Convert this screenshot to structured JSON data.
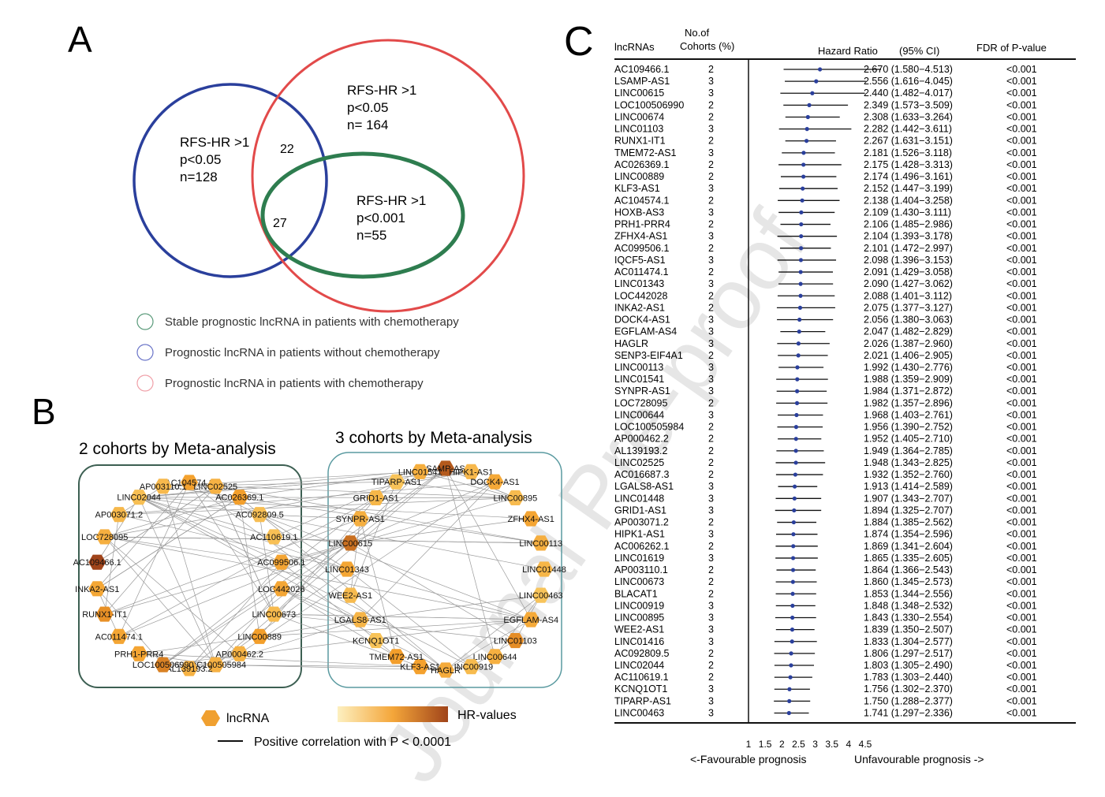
{
  "watermark": "Journal Pre-proof",
  "panel_a": {
    "letter": "A",
    "venn": [
      {
        "name": "blue",
        "color": "#2a3f9c",
        "lines": [
          "RFS-HR >1",
          "p<0.05",
          "n=128"
        ]
      },
      {
        "name": "red",
        "color": "#e24a4a",
        "lines": [
          "RFS-HR >1",
          "p<0.05",
          "n= 164"
        ]
      },
      {
        "name": "green",
        "color": "#2e7d4f",
        "lines": [
          "RFS-HR >1",
          "p<0.001",
          "n=55"
        ]
      }
    ],
    "overlap_blue_red": "22",
    "overlap_all": "27",
    "legend": [
      {
        "label": "Stable prognostic lncRNA in patients with chemotherapy",
        "color": "#5a9a7a"
      },
      {
        "label": "Prognostic lncRNA in patients without chemotherapy",
        "color": "#6a74c8"
      },
      {
        "label": "Prognostic lncRNA in patients with chemotherapy",
        "color": "#f0a0a8"
      }
    ]
  },
  "panel_b": {
    "letter": "B",
    "group2_title": "2 cohorts by Meta-analysis",
    "group3_title": "3 cohorts by Meta-analysis",
    "group2_nodes": [
      "AC104574.1",
      "LINC02525",
      "AC026369.1",
      "AC092809.5",
      "AC110619.1",
      "AC099506.1",
      "LOC442028",
      "LINC00673",
      "LINC00889",
      "AP000462.2",
      "LOC100505984",
      "AL139193.2",
      "LOC100506990",
      "PRH1-PRR4",
      "AC011474.1",
      "RUNX1-IT1",
      "INKA2-AS1",
      "AC109466.1",
      "LOC728095",
      "AP003071.2",
      "LINC02044",
      "AP003110.1"
    ],
    "group3_nodes": [
      "LSAMP-AS1",
      "HIPK1-AS1",
      "DOCK4-AS1",
      "LINC00895",
      "ZFHX4-AS1",
      "LINC00113",
      "LINC01448",
      "LINC00463",
      "EGFLAM-AS4",
      "LINC01103",
      "LINC00644",
      "LINC00919",
      "HAGLR",
      "KLF3-AS1",
      "TMEM72-AS1",
      "KCNQ1OT1",
      "LGALS8-AS1",
      "WEE2-AS1",
      "LINC01343",
      "LINC00615",
      "SYNPR-AS1",
      "GRID1-AS1",
      "TIPARP-AS1",
      "LINC01541"
    ],
    "legend_node": "lncRNA",
    "legend_gradient": "HR-values",
    "legend_edge": "Positive correlation with P < 0.0001"
  },
  "chart_data": {
    "type": "forest",
    "panel_letter": "C",
    "columns": {
      "name": "lncRNAs",
      "cohorts": "No.of\nCohorts (%)",
      "hr": "Hazard Ratio",
      "ci": "(95% CI)",
      "fdr": "FDR of  P-value"
    },
    "xticks": [
      1,
      1.5,
      2,
      2.5,
      3,
      3.5,
      4,
      4.5
    ],
    "xlim": [
      1,
      4.5
    ],
    "xlabel_left": "<-Favourable prognosis",
    "xlabel_right": "Unfavourable prognosis ->",
    "rows": [
      {
        "name": "AC109466.1",
        "n": 2,
        "hr": 2.67,
        "lo": 1.58,
        "hi": 4.513,
        "fdr": "<0.001"
      },
      {
        "name": "LSAMP-AS1",
        "n": 3,
        "hr": 2.556,
        "lo": 1.616,
        "hi": 4.045,
        "fdr": "<0.001"
      },
      {
        "name": "LINC00615",
        "n": 3,
        "hr": 2.44,
        "lo": 1.482,
        "hi": 4.017,
        "fdr": "<0.001"
      },
      {
        "name": "LOC100506990",
        "n": 2,
        "hr": 2.349,
        "lo": 1.573,
        "hi": 3.509,
        "fdr": "<0.001"
      },
      {
        "name": "LINC00674",
        "n": 2,
        "hr": 2.308,
        "lo": 1.633,
        "hi": 3.264,
        "fdr": "<0.001"
      },
      {
        "name": "LINC01103",
        "n": 3,
        "hr": 2.282,
        "lo": 1.442,
        "hi": 3.611,
        "fdr": "<0.001"
      },
      {
        "name": "RUNX1-IT1",
        "n": 2,
        "hr": 2.267,
        "lo": 1.631,
        "hi": 3.151,
        "fdr": "<0.001"
      },
      {
        "name": "TMEM72-AS1",
        "n": 3,
        "hr": 2.181,
        "lo": 1.526,
        "hi": 3.118,
        "fdr": "<0.001"
      },
      {
        "name": "AC026369.1",
        "n": 2,
        "hr": 2.175,
        "lo": 1.428,
        "hi": 3.313,
        "fdr": "<0.001"
      },
      {
        "name": "LINC00889",
        "n": 2,
        "hr": 2.174,
        "lo": 1.496,
        "hi": 3.161,
        "fdr": "<0.001"
      },
      {
        "name": "KLF3-AS1",
        "n": 3,
        "hr": 2.152,
        "lo": 1.447,
        "hi": 3.199,
        "fdr": "<0.001"
      },
      {
        "name": "AC104574.1",
        "n": 2,
        "hr": 2.138,
        "lo": 1.404,
        "hi": 3.258,
        "fdr": "<0.001"
      },
      {
        "name": "HOXB-AS3",
        "n": 3,
        "hr": 2.109,
        "lo": 1.43,
        "hi": 3.111,
        "fdr": "<0.001"
      },
      {
        "name": "PRH1-PRR4",
        "n": 2,
        "hr": 2.106,
        "lo": 1.485,
        "hi": 2.986,
        "fdr": "<0.001"
      },
      {
        "name": "ZFHX4-AS1",
        "n": 3,
        "hr": 2.104,
        "lo": 1.393,
        "hi": 3.178,
        "fdr": "<0.001"
      },
      {
        "name": "AC099506.1",
        "n": 2,
        "hr": 2.101,
        "lo": 1.472,
        "hi": 2.997,
        "fdr": "<0.001"
      },
      {
        "name": "IQCF5-AS1",
        "n": 3,
        "hr": 2.098,
        "lo": 1.396,
        "hi": 3.153,
        "fdr": "<0.001"
      },
      {
        "name": "AC011474.1",
        "n": 2,
        "hr": 2.091,
        "lo": 1.429,
        "hi": 3.058,
        "fdr": "<0.001"
      },
      {
        "name": "LINC01343",
        "n": 3,
        "hr": 2.09,
        "lo": 1.427,
        "hi": 3.062,
        "fdr": "<0.001"
      },
      {
        "name": "LOC442028",
        "n": 2,
        "hr": 2.088,
        "lo": 1.401,
        "hi": 3.112,
        "fdr": "<0.001"
      },
      {
        "name": "INKA2-AS1",
        "n": 2,
        "hr": 2.075,
        "lo": 1.377,
        "hi": 3.127,
        "fdr": "<0.001"
      },
      {
        "name": "DOCK4-AS1",
        "n": 3,
        "hr": 2.056,
        "lo": 1.38,
        "hi": 3.063,
        "fdr": "<0.001"
      },
      {
        "name": "EGFLAM-AS4",
        "n": 3,
        "hr": 2.047,
        "lo": 1.482,
        "hi": 2.829,
        "fdr": "<0.001"
      },
      {
        "name": "HAGLR",
        "n": 3,
        "hr": 2.026,
        "lo": 1.387,
        "hi": 2.96,
        "fdr": "<0.001"
      },
      {
        "name": "SENP3-EIF4A1",
        "n": 2,
        "hr": 2.021,
        "lo": 1.406,
        "hi": 2.905,
        "fdr": "<0.001"
      },
      {
        "name": "LINC00113",
        "n": 3,
        "hr": 1.992,
        "lo": 1.43,
        "hi": 2.776,
        "fdr": "<0.001"
      },
      {
        "name": "LINC01541",
        "n": 3,
        "hr": 1.988,
        "lo": 1.359,
        "hi": 2.909,
        "fdr": "<0.001"
      },
      {
        "name": "SYNPR-AS1",
        "n": 3,
        "hr": 1.984,
        "lo": 1.371,
        "hi": 2.872,
        "fdr": "<0.001"
      },
      {
        "name": "LOC728095",
        "n": 2,
        "hr": 1.982,
        "lo": 1.357,
        "hi": 2.896,
        "fdr": "<0.001"
      },
      {
        "name": "LINC00644",
        "n": 3,
        "hr": 1.968,
        "lo": 1.403,
        "hi": 2.761,
        "fdr": "<0.001"
      },
      {
        "name": "LOC100505984",
        "n": 2,
        "hr": 1.956,
        "lo": 1.39,
        "hi": 2.752,
        "fdr": "<0.001"
      },
      {
        "name": "AP000462.2",
        "n": 2,
        "hr": 1.952,
        "lo": 1.405,
        "hi": 2.71,
        "fdr": "<0.001"
      },
      {
        "name": "AL139193.2",
        "n": 2,
        "hr": 1.949,
        "lo": 1.364,
        "hi": 2.785,
        "fdr": "<0.001"
      },
      {
        "name": "LINC02525",
        "n": 2,
        "hr": 1.948,
        "lo": 1.343,
        "hi": 2.825,
        "fdr": "<0.001"
      },
      {
        "name": "AC016687.3",
        "n": 2,
        "hr": 1.932,
        "lo": 1.352,
        "hi": 2.76,
        "fdr": "<0.001"
      },
      {
        "name": "LGALS8-AS1",
        "n": 3,
        "hr": 1.913,
        "lo": 1.414,
        "hi": 2.589,
        "fdr": "<0.001"
      },
      {
        "name": "LINC01448",
        "n": 3,
        "hr": 1.907,
        "lo": 1.343,
        "hi": 2.707,
        "fdr": "<0.001"
      },
      {
        "name": "GRID1-AS1",
        "n": 3,
        "hr": 1.894,
        "lo": 1.325,
        "hi": 2.707,
        "fdr": "<0.001"
      },
      {
        "name": "AP003071.2",
        "n": 2,
        "hr": 1.884,
        "lo": 1.385,
        "hi": 2.562,
        "fdr": "<0.001"
      },
      {
        "name": "HIPK1-AS1",
        "n": 3,
        "hr": 1.874,
        "lo": 1.354,
        "hi": 2.596,
        "fdr": "<0.001"
      },
      {
        "name": "AC006262.1",
        "n": 2,
        "hr": 1.869,
        "lo": 1.341,
        "hi": 2.604,
        "fdr": "<0.001"
      },
      {
        "name": "LINC01619",
        "n": 3,
        "hr": 1.865,
        "lo": 1.335,
        "hi": 2.605,
        "fdr": "<0.001"
      },
      {
        "name": "AP003110.1",
        "n": 2,
        "hr": 1.864,
        "lo": 1.366,
        "hi": 2.543,
        "fdr": "<0.001"
      },
      {
        "name": "LINC00673",
        "n": 2,
        "hr": 1.86,
        "lo": 1.345,
        "hi": 2.573,
        "fdr": "<0.001"
      },
      {
        "name": "BLACAT1",
        "n": 2,
        "hr": 1.853,
        "lo": 1.344,
        "hi": 2.556,
        "fdr": "<0.001"
      },
      {
        "name": "LINC00919",
        "n": 3,
        "hr": 1.848,
        "lo": 1.348,
        "hi": 2.532,
        "fdr": "<0.001"
      },
      {
        "name": "LINC00895",
        "n": 3,
        "hr": 1.843,
        "lo": 1.33,
        "hi": 2.554,
        "fdr": "<0.001"
      },
      {
        "name": "WEE2-AS1",
        "n": 3,
        "hr": 1.839,
        "lo": 1.35,
        "hi": 2.507,
        "fdr": "<0.001"
      },
      {
        "name": "LINC01416",
        "n": 3,
        "hr": 1.833,
        "lo": 1.304,
        "hi": 2.577,
        "fdr": "<0.001"
      },
      {
        "name": "AC092809.5",
        "n": 2,
        "hr": 1.806,
        "lo": 1.297,
        "hi": 2.517,
        "fdr": "<0.001"
      },
      {
        "name": "LINC02044",
        "n": 2,
        "hr": 1.803,
        "lo": 1.305,
        "hi": 2.49,
        "fdr": "<0.001"
      },
      {
        "name": "AC110619.1",
        "n": 2,
        "hr": 1.783,
        "lo": 1.303,
        "hi": 2.44,
        "fdr": "<0.001"
      },
      {
        "name": "KCNQ1OT1",
        "n": 3,
        "hr": 1.756,
        "lo": 1.302,
        "hi": 2.37,
        "fdr": "<0.001"
      },
      {
        "name": "TIPARP-AS1",
        "n": 3,
        "hr": 1.75,
        "lo": 1.288,
        "hi": 2.377,
        "fdr": "<0.001"
      },
      {
        "name": "LINC00463",
        "n": 3,
        "hr": 1.741,
        "lo": 1.297,
        "hi": 2.336,
        "fdr": "<0.001"
      }
    ]
  }
}
